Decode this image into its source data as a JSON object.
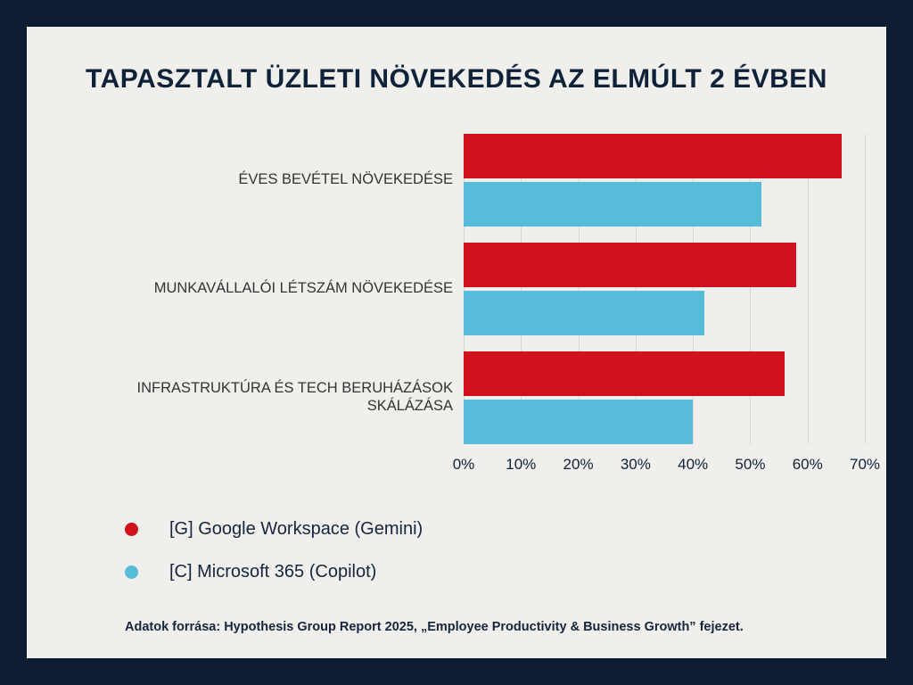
{
  "page": {
    "background_color": "#0d1b33",
    "card_background_color": "#f0efec"
  },
  "chart_data": {
    "type": "bar",
    "orientation": "horizontal",
    "title": "TAPASZTALT ÜZLETI NÖVEKEDÉS AZ ELMÚLT 2 ÉVBEN",
    "categories": [
      "ÉVES BEVÉTEL NÖVEKEDÉSE",
      "MUNKAVÁLLALÓI LÉTSZÁM NÖVEKEDÉSE",
      "INFRASTRUKTÚRA ÉS TECH BERUHÁZÁSOK SKÁLÁZÁSA"
    ],
    "series": [
      {
        "name": "[G] Google Workspace (Gemini)",
        "key": "gemini",
        "color": "#d1111c",
        "values": [
          66,
          58,
          56
        ]
      },
      {
        "name": "[C] Microsoft 365 (Copilot)",
        "key": "copilot",
        "color": "#57bcd9",
        "values": [
          52,
          42,
          40
        ]
      }
    ],
    "xlim": [
      0,
      70
    ],
    "x_ticks": [
      "0%",
      "10%",
      "20%",
      "30%",
      "40%",
      "50%",
      "60%",
      "70%"
    ],
    "grid": true,
    "legend_position": "bottom-left"
  },
  "footnote": "Adatok forrása: Hypothesis Group Report 2025, „Employee Productivity & Business Growth” fejezet."
}
